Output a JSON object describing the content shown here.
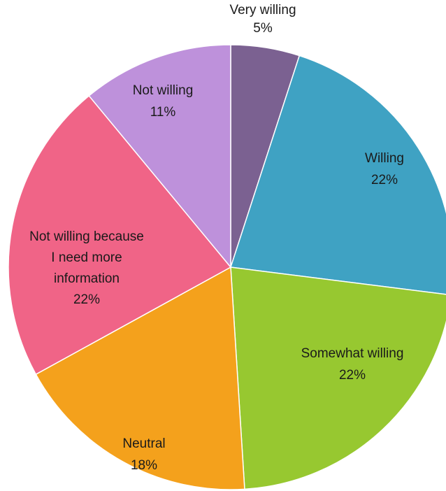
{
  "chart_data": {
    "type": "pie",
    "title": "",
    "slices": [
      {
        "name": "Very willing",
        "label_lines": [
          "Very willing"
        ],
        "value_label": "5%",
        "value": 5,
        "color": "#7B6191"
      },
      {
        "name": "Willing",
        "label_lines": [
          "Willing"
        ],
        "value_label": "22%",
        "value": 22,
        "color": "#3FA2C3"
      },
      {
        "name": "Somewhat willing",
        "label_lines": [
          "Somewhat willing"
        ],
        "value_label": "22%",
        "value": 22,
        "color": "#97C830"
      },
      {
        "name": "Neutral",
        "label_lines": [
          "Neutral"
        ],
        "value_label": "18%",
        "value": 18,
        "color": "#F4A11C"
      },
      {
        "name": "Not willing because I need more information",
        "label_lines": [
          "Not willing because",
          "I need more",
          "information"
        ],
        "value_label": "22%",
        "value": 22,
        "color": "#F06487"
      },
      {
        "name": "Not willing",
        "label_lines": [
          "Not willing"
        ],
        "value_label": "11%",
        "value": 11,
        "color": "#BE91DB"
      }
    ],
    "start_angle_deg": 0,
    "direction": "clockwise",
    "legend": "none",
    "data_labels": "inside",
    "slice_border_color": "#ffffff"
  }
}
